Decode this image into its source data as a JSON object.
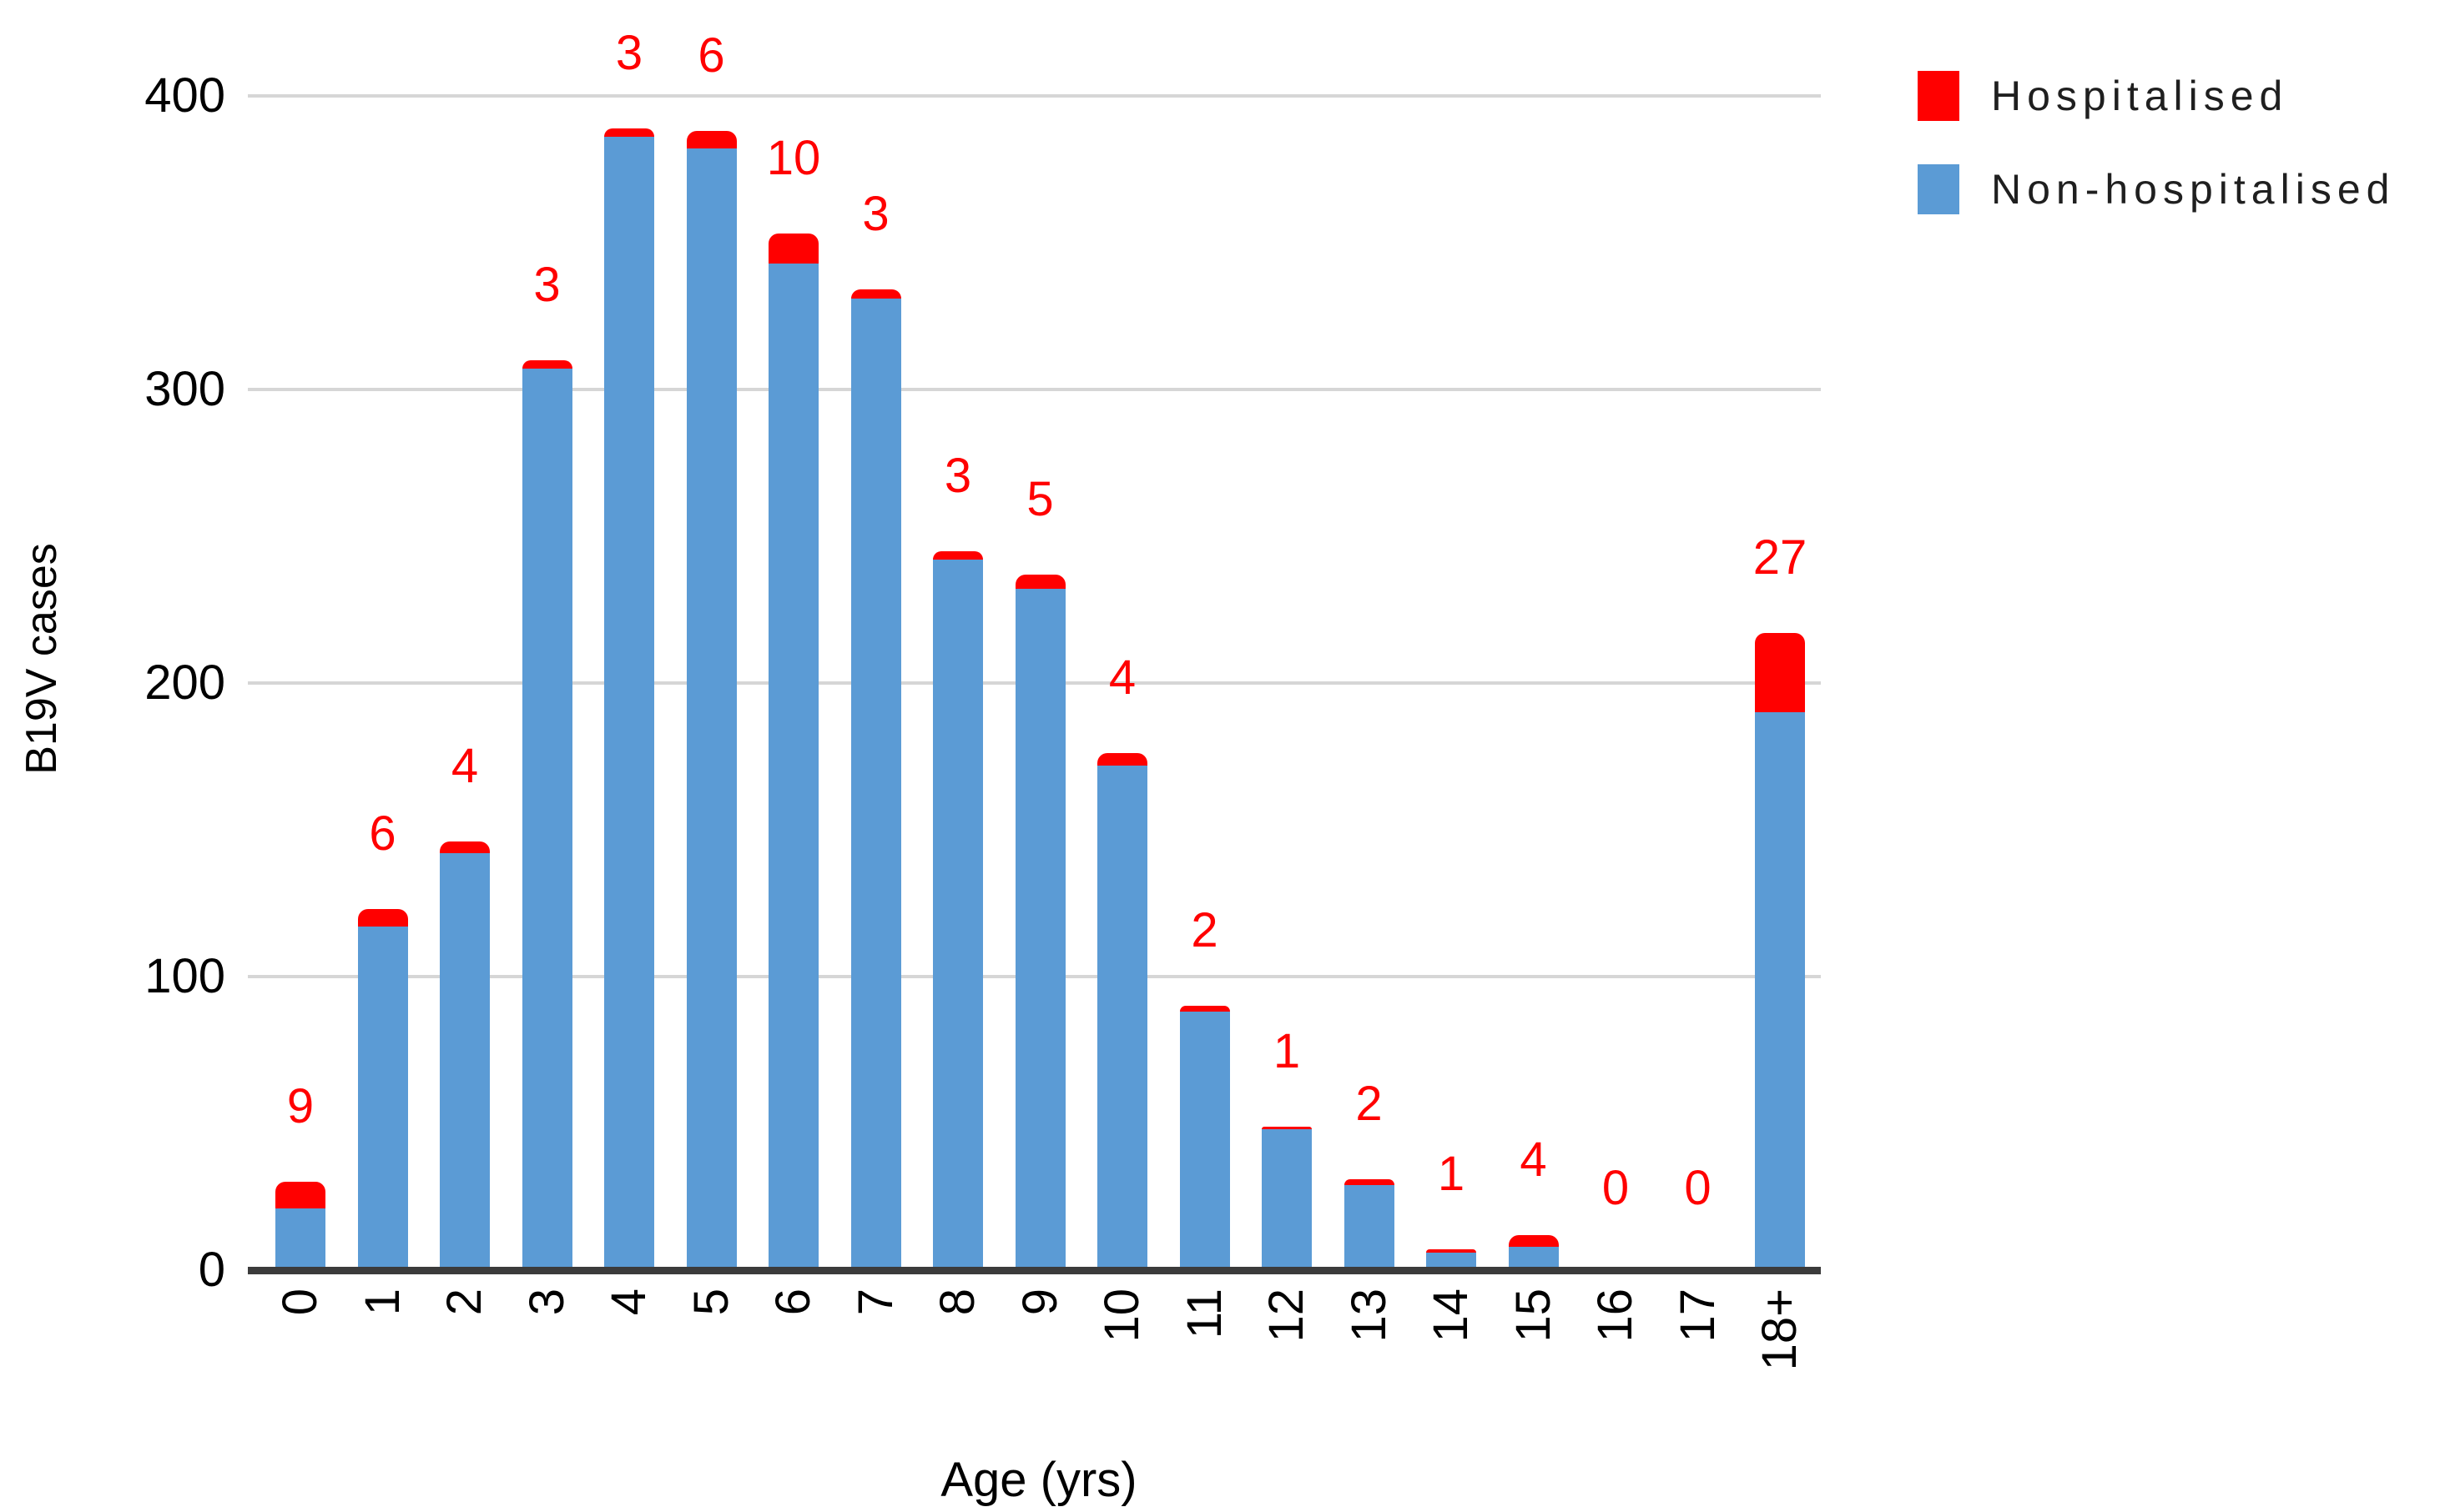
{
  "chart_data": {
    "type": "bar",
    "stacked": true,
    "title": "",
    "xlabel": "Age (yrs)",
    "ylabel": "B19V cases",
    "categories": [
      "0",
      "1",
      "2",
      "3",
      "4",
      "5",
      "6",
      "7",
      "8",
      "9",
      "10",
      "11",
      "12",
      "13",
      "14",
      "15",
      "16",
      "17",
      "18+"
    ],
    "series": [
      {
        "name": "Hospitalised",
        "color": "#FF0000",
        "values": [
          9,
          6,
          4,
          3,
          3,
          6,
          10,
          3,
          3,
          5,
          4,
          2,
          1,
          2,
          1,
          4,
          0,
          0,
          27
        ]
      },
      {
        "name": "Non-hospitalised",
        "color": "#5B9BD5",
        "values": [
          21,
          117,
          142,
          307,
          386,
          382,
          343,
          331,
          242,
          232,
          172,
          88,
          48,
          29,
          6,
          8,
          0,
          0,
          190
        ]
      }
    ],
    "totals": [
      30,
      123,
      146,
      310,
      389,
      388,
      353,
      334,
      245,
      237,
      176,
      90,
      49,
      31,
      7,
      12,
      0,
      0,
      217
    ],
    "bar_value_labels": [
      "9",
      "6",
      "4",
      "3",
      "3",
      "6",
      "10",
      "3",
      "3",
      "5",
      "4",
      "2",
      "1",
      "2",
      "1",
      "4",
      "0",
      "0",
      "27"
    ],
    "annotation_color": "#FF0000",
    "y_ticks": [
      "0",
      "100",
      "200",
      "300",
      "400"
    ],
    "ylim": [
      0,
      432
    ],
    "grid": true,
    "gridline_color": "#D6D6D6",
    "axis_line_color": "#3B3B3B",
    "legend_position": "top-right",
    "legend": [
      "Hospitalised",
      "Non-hospitalised"
    ]
  }
}
